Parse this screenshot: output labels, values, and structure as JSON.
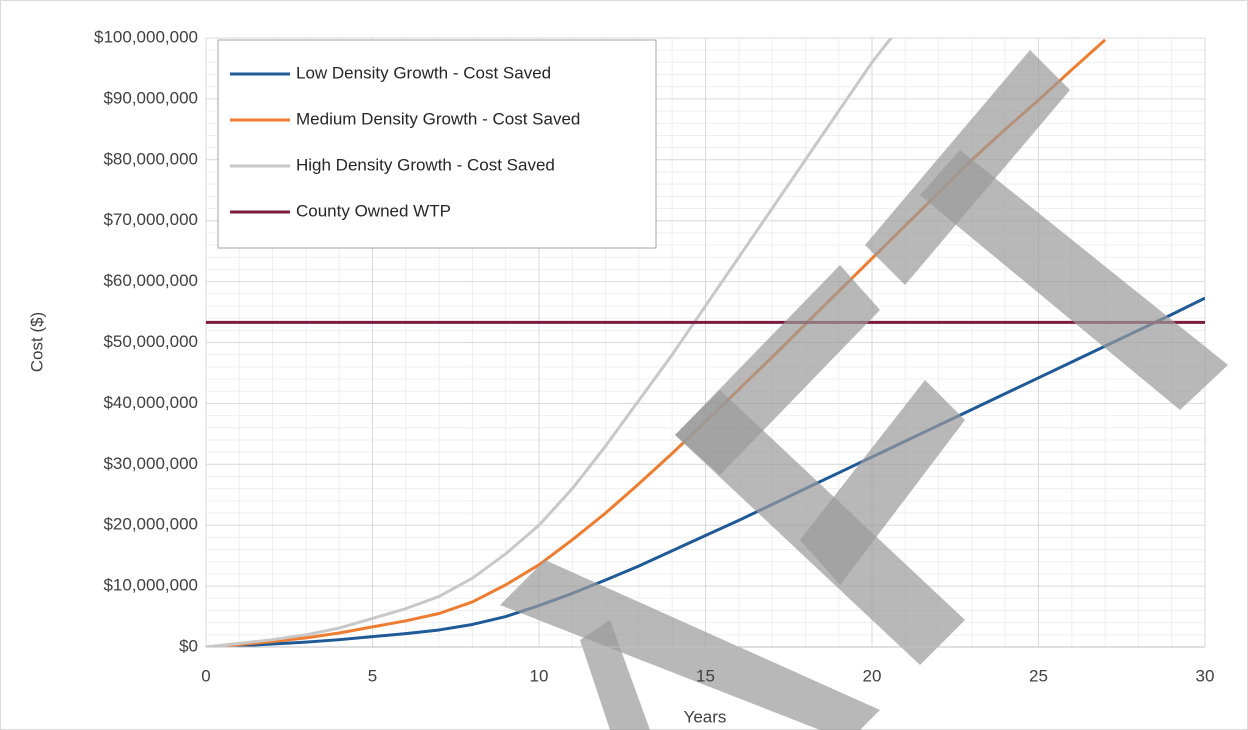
{
  "chart_data": {
    "type": "line",
    "x_label": "Years",
    "y_label": "Cost ($)",
    "x": [
      0,
      1,
      2,
      3,
      4,
      5,
      6,
      7,
      8,
      9,
      10,
      11,
      12,
      13,
      14,
      15,
      16,
      17,
      18,
      19,
      20,
      21,
      22,
      23,
      24,
      25,
      26,
      27,
      28,
      29,
      30
    ],
    "series": [
      {
        "name": "Low Density Growth - Cost Saved",
        "color": "#1f5a96",
        "values": [
          0,
          200000,
          500000,
          800000,
          1200000,
          1700000,
          2200000,
          2800000,
          3700000,
          5000000,
          6800000,
          8800000,
          11000000,
          13300000,
          15800000,
          18300000,
          20800000,
          23400000,
          26000000,
          28600000,
          31200000,
          33800000,
          36400000,
          39000000,
          41600000,
          44200000,
          46800000,
          49400000,
          52000000,
          54600000,
          57300000
        ]
      },
      {
        "name": "Medium Density Growth - Cost Saved",
        "color": "#ed7d31",
        "values": [
          0,
          400000,
          900000,
          1500000,
          2300000,
          3300000,
          4300000,
          5500000,
          7400000,
          10200000,
          13500000,
          17600000,
          22000000,
          26800000,
          31800000,
          37000000,
          42300000,
          47600000,
          53000000,
          58400000,
          63800000,
          69200000,
          74600000,
          80000000,
          85000000,
          89800000,
          94800000,
          99700000,
          null,
          null,
          null
        ]
      },
      {
        "name": "High Density Growth - Cost Saved",
        "color": "#c8c8c8",
        "values": [
          0,
          600000,
          1200000,
          2000000,
          3100000,
          4700000,
          6300000,
          8300000,
          11300000,
          15300000,
          20000000,
          26000000,
          33000000,
          40500000,
          48000000,
          56000000,
          64000000,
          72000000,
          80000000,
          88000000,
          96000000,
          103000000,
          null,
          null,
          null,
          null,
          null,
          null,
          null,
          null,
          null
        ]
      },
      {
        "name": "County Owned WTP",
        "color": "#7b1c3f",
        "values": [
          53300000,
          53300000,
          53300000,
          53300000,
          53300000,
          53300000,
          53300000,
          53300000,
          53300000,
          53300000,
          53300000,
          53300000,
          53300000,
          53300000,
          53300000,
          53300000,
          53300000,
          53300000,
          53300000,
          53300000,
          53300000,
          53300000,
          53300000,
          53300000,
          53300000,
          53300000,
          53300000,
          53300000,
          53300000,
          53300000,
          53300000
        ]
      }
    ],
    "xlim": [
      0,
      30
    ],
    "xticks": [
      0,
      5,
      10,
      15,
      20,
      25,
      30
    ],
    "ylim": [
      0,
      100000000
    ],
    "yticks": [
      {
        "value": 0,
        "label": "$0"
      },
      {
        "value": 10000000,
        "label": "$10,000,000"
      },
      {
        "value": 20000000,
        "label": "$20,000,000"
      },
      {
        "value": 30000000,
        "label": "$30,000,000"
      },
      {
        "value": 40000000,
        "label": "$40,000,000"
      },
      {
        "value": 50000000,
        "label": "$50,000,000"
      },
      {
        "value": 60000000,
        "label": "$60,000,000"
      },
      {
        "value": 70000000,
        "label": "$70,000,000"
      },
      {
        "value": 80000000,
        "label": "$80,000,000"
      },
      {
        "value": 90000000,
        "label": "$90,000,000"
      },
      {
        "value": 100000000,
        "label": "$100,000,000"
      }
    ],
    "grid": true,
    "minor_grid": true,
    "legend": "upper left"
  }
}
